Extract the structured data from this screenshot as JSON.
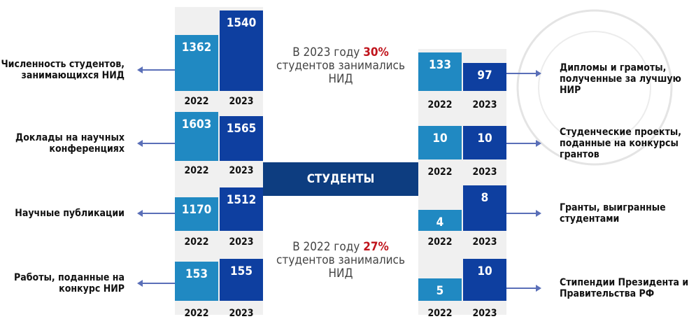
{
  "center": {
    "label": "СТУДЕНТЫ"
  },
  "notes": [
    {
      "prefix": "В 2023 году ",
      "percent": "30%",
      "line2": "студентов занимались",
      "line3": "НИД"
    },
    {
      "prefix": "В 2022 году ",
      "percent": "27%",
      "line2": "студентов занимались",
      "line3": "НИД"
    }
  ],
  "left": [
    {
      "label": "Численность студентов,\nзанимающихся НИД",
      "years": [
        "2022",
        "2023"
      ],
      "values": [
        "1362",
        "1540"
      ]
    },
    {
      "label": "Доклады на научных\nконференциях",
      "years": [
        "2022",
        "2023"
      ],
      "values": [
        "1603",
        "1565"
      ]
    },
    {
      "label": "Научные публикации",
      "years": [
        "2022",
        "2023"
      ],
      "values": [
        "1170",
        "1512"
      ]
    },
    {
      "label": "Работы, поданные на\nконкурс НИР",
      "years": [
        "2022",
        "2023"
      ],
      "values": [
        "153",
        "155"
      ]
    }
  ],
  "right": [
    {
      "label": "Дипломы и грамоты,\nполученные за лучшую НИР",
      "years": [
        "2022",
        "2023"
      ],
      "values": [
        "133",
        "97"
      ]
    },
    {
      "label": "Студенческие проекты,\nподанные на конкурсы\nгрантов",
      "years": [
        "2022",
        "2023"
      ],
      "values": [
        "10",
        "10"
      ]
    },
    {
      "label": "Гранты, выигранные\nстудентами",
      "years": [
        "2022",
        "2023"
      ],
      "values": [
        "4",
        "8"
      ]
    },
    {
      "label": "Стипендии Президента и\nПравительства РФ",
      "years": [
        "2022",
        "2023"
      ],
      "values": [
        "5",
        "10"
      ]
    }
  ]
}
